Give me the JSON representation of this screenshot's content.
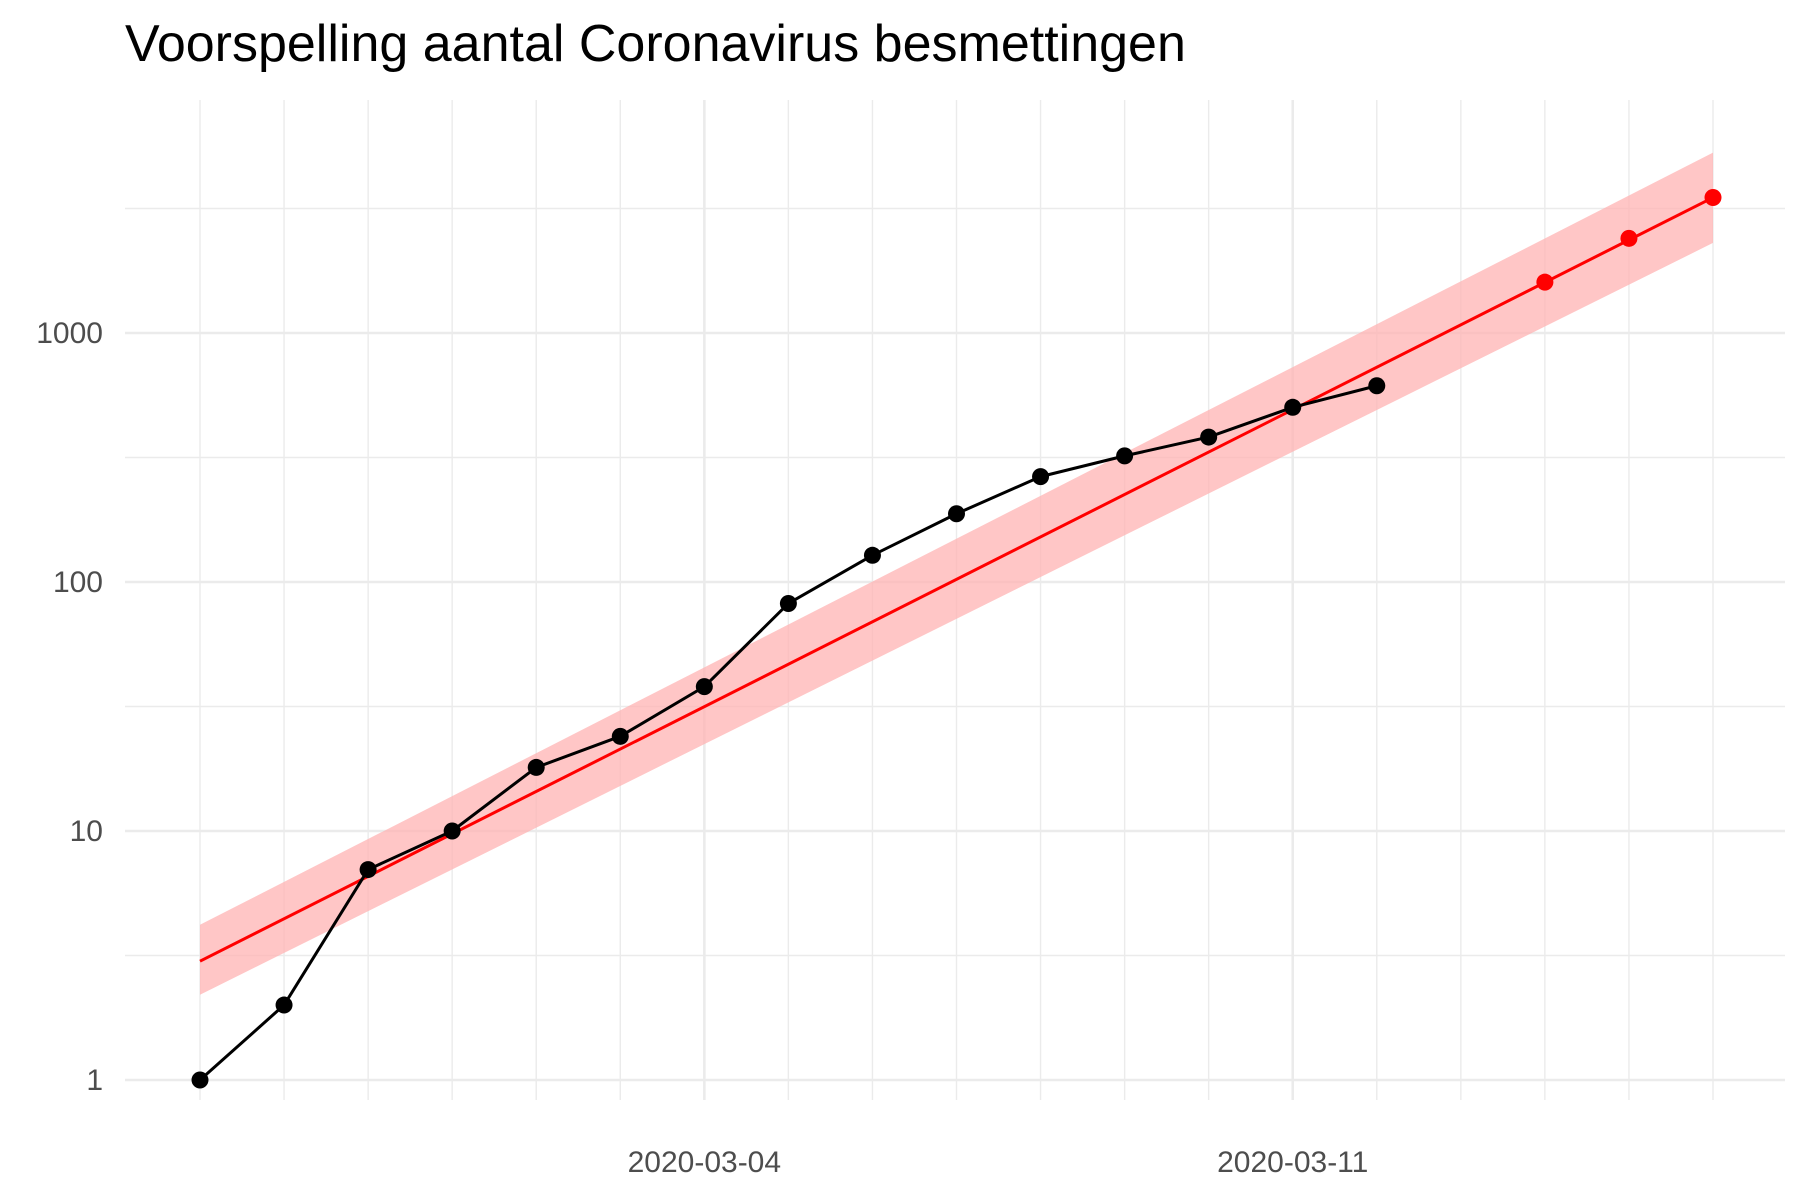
{
  "chart_data": {
    "type": "line",
    "title": "Voorspelling aantal Coronavirus besmettingen",
    "xlabel": "",
    "ylabel": "",
    "x_axis": {
      "type": "date",
      "range": [
        "2020-02-27",
        "2020-03-16"
      ],
      "tick_labels": [
        "2020-03-04",
        "2020-03-11"
      ]
    },
    "y_axis": {
      "scale": "log10",
      "range": [
        1,
        5000
      ],
      "tick_labels": [
        "1",
        "10",
        "100",
        "1000"
      ]
    },
    "grid": true,
    "legend": "none",
    "series": [
      {
        "kind": "observed",
        "color": "#000000",
        "x": [
          "2020-02-27",
          "2020-02-28",
          "2020-02-29",
          "2020-03-01",
          "2020-03-02",
          "2020-03-03",
          "2020-03-04",
          "2020-03-05",
          "2020-03-06",
          "2020-03-07",
          "2020-03-08",
          "2020-03-09",
          "2020-03-10",
          "2020-03-11",
          "2020-03-12"
        ],
        "values": [
          1,
          2,
          7,
          10,
          18,
          24,
          38,
          82,
          128,
          188,
          265,
          321,
          382,
          503,
          614
        ]
      },
      {
        "kind": "fit-and-forecast",
        "color": "#ff0000",
        "x": [
          "2020-02-27",
          "2020-03-16"
        ],
        "values": [
          3,
          3500
        ],
        "band_color": "#ffb3b3",
        "band_lower": [
          2.2,
          2300
        ],
        "band_upper": [
          4.2,
          5300
        ],
        "forecast_points": {
          "x": [
            "2020-03-14",
            "2020-03-15",
            "2020-03-16"
          ],
          "values": [
            1600,
            2400,
            3500
          ]
        }
      }
    ]
  }
}
